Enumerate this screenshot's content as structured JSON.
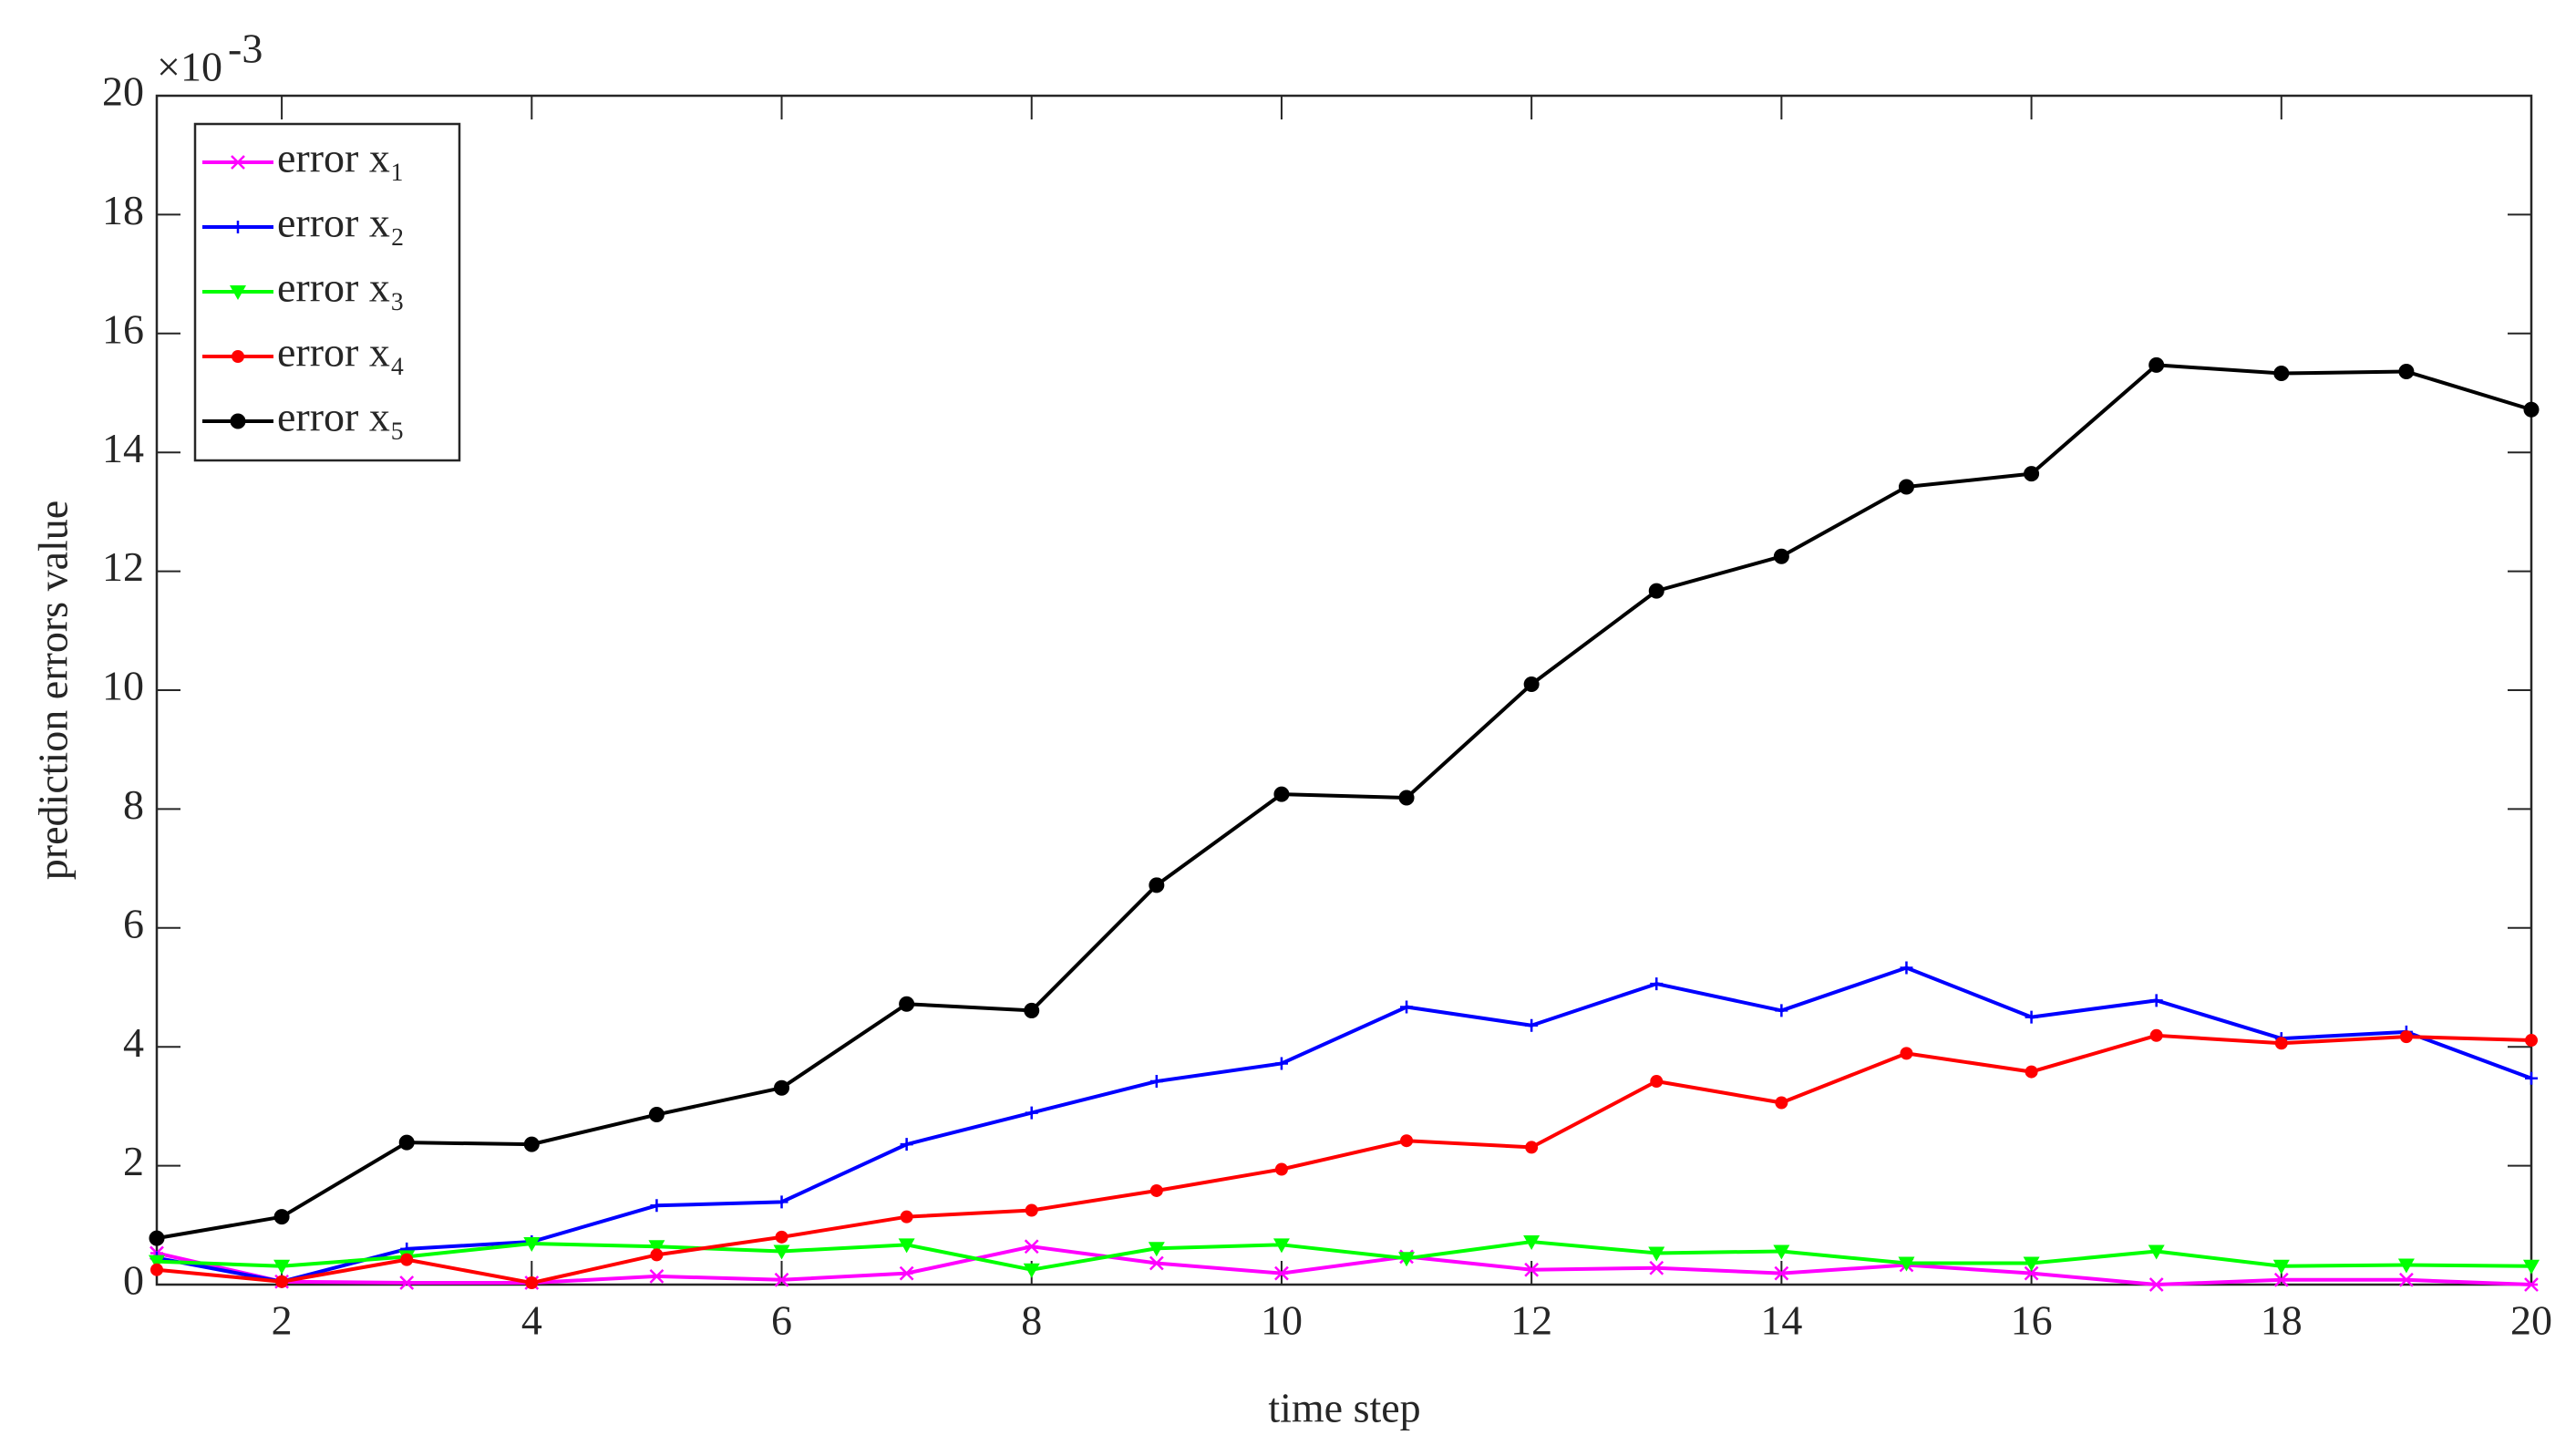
{
  "chart_data": {
    "type": "line",
    "x_label": "time step",
    "y_label": "prediction errors value",
    "y_scale_base": "×10",
    "y_scale_exponent": "-3",
    "x": [
      1,
      2,
      3,
      4,
      5,
      6,
      7,
      8,
      9,
      10,
      11,
      12,
      13,
      14,
      15,
      16,
      17,
      18,
      19,
      20
    ],
    "xlim": [
      1,
      20
    ],
    "xticks": [
      2,
      4,
      6,
      8,
      10,
      12,
      14,
      16,
      18,
      20
    ],
    "ylim": [
      0,
      20
    ],
    "yticks": [
      0,
      2,
      4,
      6,
      8,
      10,
      12,
      14,
      16,
      18,
      20
    ],
    "legend": "upper left",
    "series": [
      {
        "name": "error x₁",
        "color": "#ff00ff",
        "marker": "x",
        "values": [
          0.53,
          0.05,
          0.03,
          0.03,
          0.14,
          0.08,
          0.19,
          0.64,
          0.36,
          0.19,
          0.47,
          0.25,
          0.28,
          0.19,
          0.33,
          0.19,
          0.0,
          0.08,
          0.08,
          0.0
        ]
      },
      {
        "name": "error x₂",
        "color": "#0000ff",
        "marker": "+",
        "values": [
          0.45,
          0.05,
          0.6,
          0.72,
          1.33,
          1.39,
          2.36,
          2.89,
          3.42,
          3.72,
          4.67,
          4.36,
          5.06,
          4.61,
          5.33,
          4.5,
          4.78,
          4.14,
          4.25,
          3.47
        ]
      },
      {
        "name": "error x₃",
        "color": "#00ff00",
        "marker": "v",
        "values": [
          0.39,
          0.31,
          0.47,
          0.69,
          0.64,
          0.56,
          0.67,
          0.25,
          0.61,
          0.67,
          0.44,
          0.72,
          0.53,
          0.56,
          0.36,
          0.36,
          0.56,
          0.31,
          0.33,
          0.31
        ]
      },
      {
        "name": "error x₄",
        "color": "#ff0000",
        "marker": "dot",
        "values": [
          0.25,
          0.05,
          0.42,
          0.03,
          0.5,
          0.8,
          1.14,
          1.25,
          1.58,
          1.94,
          2.42,
          2.31,
          3.42,
          3.06,
          3.89,
          3.58,
          4.19,
          4.06,
          4.17,
          4.11
        ]
      },
      {
        "name": "error x₅",
        "color": "#000000",
        "marker": "o",
        "values": [
          0.78,
          1.14,
          2.39,
          2.36,
          2.86,
          3.31,
          4.72,
          4.61,
          6.72,
          8.25,
          8.19,
          10.1,
          11.67,
          12.25,
          13.42,
          13.64,
          15.47,
          15.33,
          15.36,
          14.72
        ]
      }
    ]
  }
}
